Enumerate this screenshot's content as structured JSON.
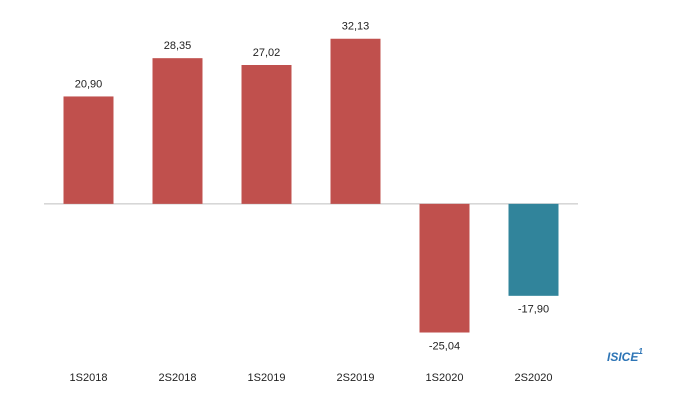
{
  "chart_data": {
    "type": "bar",
    "categories": [
      "1S2018",
      "2S2018",
      "1S2019",
      "2S2019",
      "1S2020",
      "2S2020"
    ],
    "values": [
      20.9,
      28.35,
      27.02,
      32.13,
      -25.04,
      -17.9
    ],
    "value_labels": [
      "20,90",
      "28,35",
      "27,02",
      "32,13",
      "-25,04",
      "-17,90"
    ],
    "colors": [
      "#c0504d",
      "#c0504d",
      "#c0504d",
      "#c0504d",
      "#c0504d",
      "#31849b"
    ],
    "ylim": [
      -30,
      35
    ],
    "annotation": {
      "text": "ISICE",
      "superscript": "1"
    }
  }
}
